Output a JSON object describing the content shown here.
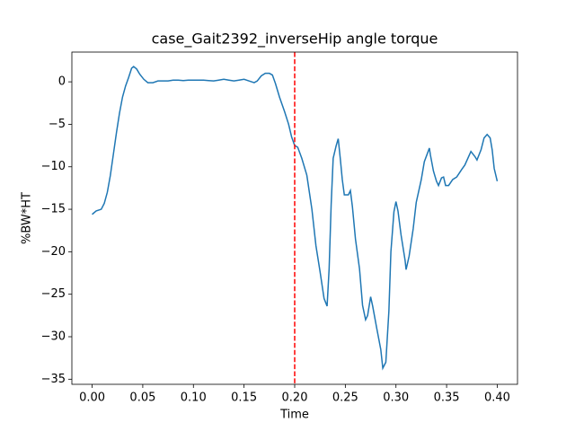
{
  "chart_data": {
    "type": "line",
    "title": "case_Gait2392_inverseHip angle torque",
    "x_label": "Time",
    "y_label": "%BW*HT",
    "x": [
      0,
      0.004,
      0.009,
      0.012,
      0.015,
      0.018,
      0.021,
      0.024,
      0.027,
      0.03,
      0.033,
      0.036,
      0.039,
      0.041,
      0.044,
      0.047,
      0.051,
      0.055,
      0.06,
      0.065,
      0.07,
      0.075,
      0.08,
      0.085,
      0.09,
      0.095,
      0.1,
      0.105,
      0.11,
      0.115,
      0.12,
      0.125,
      0.13,
      0.135,
      0.14,
      0.145,
      0.15,
      0.155,
      0.16,
      0.163,
      0.167,
      0.171,
      0.175,
      0.178,
      0.181,
      0.185,
      0.19,
      0.194,
      0.197,
      0.2,
      0.203,
      0.207,
      0.212,
      0.217,
      0.221,
      0.225,
      0.229,
      0.232,
      0.234,
      0.236,
      0.238,
      0.241,
      0.243,
      0.245,
      0.247,
      0.249,
      0.253,
      0.255,
      0.257,
      0.26,
      0.264,
      0.267,
      0.27,
      0.272,
      0.275,
      0.277,
      0.281,
      0.285,
      0.287,
      0.29,
      0.293,
      0.295,
      0.298,
      0.3,
      0.302,
      0.305,
      0.309,
      0.31,
      0.313,
      0.317,
      0.32,
      0.325,
      0.328,
      0.333,
      0.334,
      0.337,
      0.34,
      0.342,
      0.345,
      0.347,
      0.349,
      0.352,
      0.356,
      0.36,
      0.365,
      0.368,
      0.374,
      0.378,
      0.38,
      0.384,
      0.387,
      0.39,
      0.393,
      0.395,
      0.397,
      0.4
    ],
    "series": [
      {
        "name": "Hip angle torque",
        "color": "#1f77b4",
        "values": [
          -15.6,
          -15.2,
          -15,
          -14.3,
          -13,
          -11,
          -8.5,
          -6,
          -3.7,
          -1.8,
          -0.5,
          0.5,
          1.6,
          1.8,
          1.5,
          0.9,
          0.3,
          -0.1,
          -0.1,
          0.1,
          0.1,
          0.1,
          0.2,
          0.2,
          0.15,
          0.2,
          0.2,
          0.2,
          0.2,
          0.15,
          0.1,
          0.2,
          0.3,
          0.2,
          0.1,
          0.2,
          0.3,
          0.1,
          -0.1,
          0.1,
          0.7,
          1.0,
          1.0,
          0.8,
          -0.2,
          -1.8,
          -3.5,
          -5,
          -6.5,
          -7.5,
          -7.7,
          -9,
          -11,
          -15,
          -19.3,
          -22.3,
          -25.5,
          -26.4,
          -22,
          -14.5,
          -9,
          -7.5,
          -6.7,
          -9,
          -11.5,
          -13.3,
          -13.3,
          -12.8,
          -14.7,
          -18.5,
          -22,
          -26.3,
          -28,
          -27.5,
          -25.3,
          -26.4,
          -29,
          -31.5,
          -33.7,
          -33,
          -27,
          -20,
          -15.3,
          -14.1,
          -15.2,
          -18,
          -21,
          -22.1,
          -20.5,
          -17.3,
          -14.2,
          -11.5,
          -9.4,
          -7.8,
          -8.6,
          -10.5,
          -11.7,
          -12.2,
          -11.3,
          -11.2,
          -12.2,
          -12.2,
          -11.5,
          -11.2,
          -10.3,
          -9.8,
          -8.2,
          -8.8,
          -9.2,
          -8,
          -6.6,
          -6.2,
          -6.6,
          -8,
          -10.2,
          -11.7
        ]
      }
    ],
    "vline": {
      "x": 0.2,
      "color": "#ff0000"
    },
    "xlim": [
      -0.02,
      0.42
    ],
    "ylim": [
      -35.6,
      3.5
    ],
    "xticks": [
      {
        "value": 0,
        "label": "0.00"
      },
      {
        "value": 0.05,
        "label": "0.05"
      },
      {
        "value": 0.1,
        "label": "0.10"
      },
      {
        "value": 0.15,
        "label": "0.15"
      },
      {
        "value": 0.2,
        "label": "0.20"
      },
      {
        "value": 0.25,
        "label": "0.25"
      },
      {
        "value": 0.3,
        "label": "0.30"
      },
      {
        "value": 0.35,
        "label": "0.35"
      },
      {
        "value": 0.4,
        "label": "0.40"
      }
    ],
    "yticks": [
      0,
      {
        "value": -5,
        "label": "−5"
      },
      {
        "value": -10,
        "label": "−10"
      },
      {
        "value": -15,
        "label": "−15"
      },
      {
        "value": -20,
        "label": "−20"
      },
      {
        "value": -25,
        "label": "−25"
      },
      {
        "value": -30,
        "label": "−30"
      },
      {
        "value": -35,
        "label": "−35"
      }
    ],
    "grid": false
  }
}
